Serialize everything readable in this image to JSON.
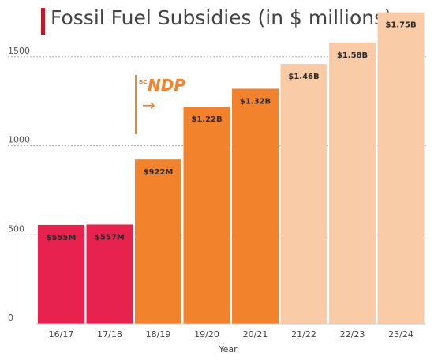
{
  "chart_data": {
    "type": "bar",
    "title": "Fossil Fuel Subsidies (in $ millions)",
    "xlabel": "Year",
    "ylabel": "",
    "ylim": [
      0,
      1800
    ],
    "yticks": [
      0,
      500,
      1000,
      1500
    ],
    "grid": "dotted horizontal",
    "categories": [
      "16/17",
      "17/18",
      "18/19",
      "19/20",
      "20/21",
      "21/22",
      "22/23",
      "23/24"
    ],
    "values": [
      555,
      557,
      922,
      1220,
      1320,
      1460,
      1580,
      1750
    ],
    "data_labels": [
      "$555M",
      "$557M",
      "$922M",
      "$1.22B",
      "$1.32B",
      "$1.46B",
      "$1.58B",
      "$1.75B"
    ],
    "bar_colors": [
      "#e8224f",
      "#e8224f",
      "#f2822b",
      "#f2822b",
      "#f2822b",
      "#f9cba6",
      "#f9cba6",
      "#f9cba6"
    ],
    "annotation": {
      "logo_text": "NDP",
      "logo_prefix": "BC",
      "arrow": "→",
      "position_before_category": "18/19",
      "color": "#f2822b"
    }
  }
}
